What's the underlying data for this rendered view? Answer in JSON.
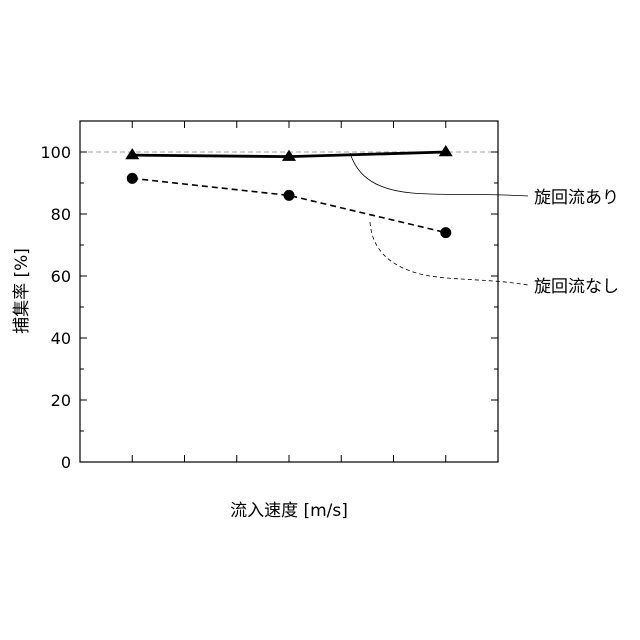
{
  "chart_data": {
    "type": "line",
    "xlabel": "流入速度 [m/s]",
    "ylabel": "捕集率 [%]",
    "ylim": [
      0,
      110
    ],
    "yticks": [
      0,
      20,
      40,
      60,
      80,
      100
    ],
    "xlim": [
      0,
      8
    ],
    "x_minor_ticks": [
      1,
      2,
      3,
      4,
      5,
      6,
      7
    ],
    "x_tick_labels_shown": false,
    "grid": false,
    "reference_line": {
      "y": 100,
      "style": "dashed",
      "color": "#888888"
    },
    "x": [
      1,
      4,
      7
    ],
    "series": [
      {
        "name": "旋回流あり",
        "values": [
          99,
          98.5,
          100
        ],
        "marker": "triangle",
        "line_style": "solid",
        "color": "#000000"
      },
      {
        "name": "旋回流なし",
        "values": [
          91.5,
          86,
          74
        ],
        "marker": "circle",
        "line_style": "dashed",
        "color": "#000000"
      }
    ],
    "legend_placement": "right (callout leader lines)"
  }
}
